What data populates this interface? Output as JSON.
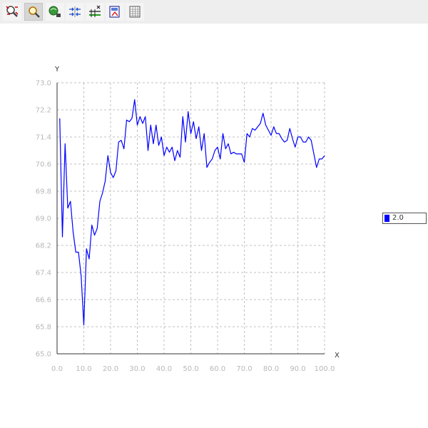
{
  "toolbar": {
    "buttons": [
      {
        "name": "zoom-reset-button",
        "icon": "zoom-reset-icon",
        "active": false
      },
      {
        "name": "zoom-button",
        "icon": "magnifier-icon",
        "active": true
      },
      {
        "name": "pan-button",
        "icon": "pan-icon",
        "active": false
      },
      {
        "name": "fit-button",
        "icon": "fit-arrows-icon",
        "active": false
      },
      {
        "name": "series-toggle-button",
        "icon": "series-icon",
        "active": false
      },
      {
        "name": "export-button",
        "icon": "export-icon",
        "active": false
      },
      {
        "name": "table-button",
        "icon": "table-icon",
        "active": false
      }
    ]
  },
  "chart_data": {
    "type": "line",
    "xlabel": "X",
    "ylabel": "Y",
    "xlim": [
      0,
      100
    ],
    "ylim": [
      65.0,
      73.0
    ],
    "xticks": [
      "0.0",
      "10.0",
      "20.0",
      "30.0",
      "40.0",
      "50.0",
      "60.0",
      "70.0",
      "80.0",
      "90.0",
      "100.0"
    ],
    "yticks": [
      "65.0",
      "65.8",
      "66.6",
      "67.4",
      "68.2",
      "69.0",
      "69.8",
      "70.6",
      "71.4",
      "72.2",
      "73.0"
    ],
    "grid": true,
    "legend_position": "right",
    "series": [
      {
        "name": "2.0",
        "color": "#0000ff",
        "x": [
          1,
          2,
          3,
          4,
          5,
          6,
          7,
          8,
          9,
          10,
          11,
          12,
          13,
          14,
          15,
          16,
          17,
          18,
          19,
          20,
          21,
          22,
          23,
          24,
          25,
          26,
          27,
          28,
          29,
          30,
          31,
          32,
          33,
          34,
          35,
          36,
          37,
          38,
          39,
          40,
          41,
          42,
          43,
          44,
          45,
          46,
          47,
          48,
          49,
          50,
          51,
          52,
          53,
          54,
          55,
          56,
          57,
          58,
          59,
          60,
          61,
          62,
          63,
          64,
          65,
          66,
          67,
          68,
          69,
          70,
          71,
          72,
          73,
          74,
          75,
          76,
          77,
          78,
          79,
          80,
          81,
          82,
          83,
          84,
          85,
          86,
          87,
          88,
          89,
          90,
          91,
          92,
          93,
          94,
          95,
          96,
          97,
          98,
          99,
          100
        ],
        "y": [
          71.95,
          68.45,
          71.2,
          69.3,
          69.5,
          68.6,
          68.0,
          68.0,
          67.3,
          65.85,
          68.1,
          67.8,
          68.8,
          68.5,
          68.7,
          69.5,
          69.75,
          70.1,
          70.85,
          70.35,
          70.2,
          70.4,
          71.25,
          71.3,
          71.05,
          71.9,
          71.85,
          71.95,
          72.5,
          71.75,
          72.0,
          71.8,
          72.0,
          71.0,
          71.75,
          71.2,
          71.75,
          71.15,
          71.4,
          70.85,
          71.1,
          70.95,
          71.1,
          70.7,
          71.0,
          70.8,
          72.0,
          71.25,
          72.15,
          71.5,
          71.85,
          71.35,
          71.7,
          71.0,
          71.5,
          70.5,
          70.65,
          70.75,
          71.0,
          71.1,
          70.75,
          71.5,
          71.05,
          71.2,
          70.9,
          70.95,
          70.9,
          70.9,
          70.9,
          70.65,
          71.5,
          71.4,
          71.65,
          71.6,
          71.7,
          71.8,
          72.1,
          71.75,
          71.6,
          71.45,
          71.7,
          71.5,
          71.5,
          71.35,
          71.25,
          71.3,
          71.65,
          71.35,
          71.1,
          71.4,
          71.4,
          71.25,
          71.25,
          71.4,
          71.3,
          70.9,
          70.5,
          70.75,
          70.75,
          70.85
        ]
      }
    ]
  }
}
